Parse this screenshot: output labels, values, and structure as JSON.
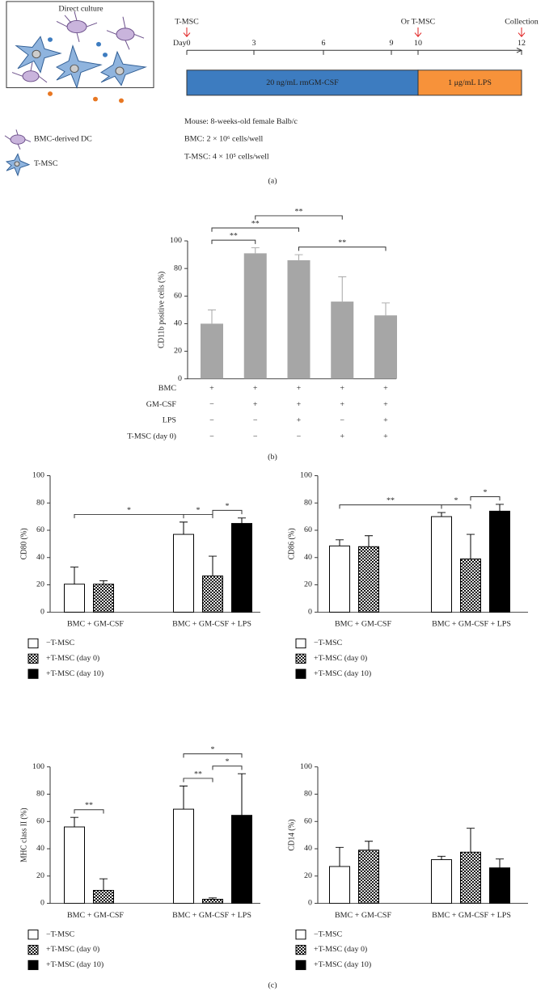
{
  "direct_culture": {
    "title": "Direct culture",
    "legend": [
      "BMC-derived DC",
      "T-MSC"
    ]
  },
  "timeline": {
    "day_label": "Day",
    "days": [
      0,
      3,
      6,
      9,
      10,
      12
    ],
    "markers": [
      {
        "label": "T-MSC",
        "day": 0
      },
      {
        "label": "Or T-MSC",
        "day": 10
      },
      {
        "label": "Collection",
        "day": 12
      }
    ],
    "phases": [
      {
        "label": "20 ng/mL rmGM-CSF",
        "from": 0,
        "to": 10,
        "color": "#3d7cc0"
      },
      {
        "label": "1 μg/mL LPS",
        "from": 10,
        "to": 12,
        "color": "#f7923a"
      }
    ],
    "notes": [
      "Mouse: 8-weeks-old female Balb/c",
      "BMC: 2 × 10⁶ cells/well",
      "T-MSC: 4 × 10⁵ cells/well"
    ]
  },
  "panels": {
    "a": "(a)",
    "b": "(b)",
    "c": "(c)"
  },
  "chart_data": [
    {
      "type": "bar",
      "y_label": "CD11b positive cells (%)",
      "values": [
        40,
        91,
        86,
        56,
        46
      ],
      "errors": [
        10,
        4,
        4,
        18,
        9
      ],
      "color": "#a6a6a6",
      "ylim": [
        0,
        100
      ],
      "yticks": [
        0,
        20,
        40,
        60,
        80,
        100
      ],
      "conditions": [
        {
          "label": "BMC",
          "marks": [
            "+",
            "+",
            "+",
            "+",
            "+"
          ]
        },
        {
          "label": "GM-CSF",
          "marks": [
            "−",
            "+",
            "+",
            "+",
            "+"
          ]
        },
        {
          "label": "LPS",
          "marks": [
            "−",
            "−",
            "+",
            "−",
            "+"
          ]
        },
        {
          "label": "T-MSC (day 0)",
          "marks": [
            "−",
            "−",
            "−",
            "+",
            "+"
          ]
        }
      ],
      "significance": [
        {
          "label": "**",
          "from": 0,
          "to": 1
        },
        {
          "label": "**",
          "from": 2,
          "to": 4
        },
        {
          "label": "**",
          "from": 0,
          "to": 2
        },
        {
          "label": "**",
          "from": 1,
          "to": 3
        }
      ]
    },
    {
      "type": "grouped_bar",
      "y_label": "CD80 (%)",
      "categories": [
        "BMC + GM-CSF",
        "BMC + GM-CSF + LPS"
      ],
      "ylim": [
        0,
        100
      ],
      "yticks": [
        0,
        20,
        40,
        60,
        80,
        100
      ],
      "series": [
        {
          "name": "−T-MSC",
          "color": "#ffffff",
          "values": [
            20.5,
            57
          ],
          "errors": [
            12.5,
            9
          ]
        },
        {
          "name": "+T-MSC (day 0)",
          "color": "checker",
          "values": [
            20.5,
            26.5
          ],
          "errors": [
            2.5,
            14.5
          ]
        },
        {
          "name": "+T-MSC (day 10)",
          "color": "#000000",
          "values": [
            null,
            65
          ],
          "errors": [
            null,
            4
          ]
        }
      ],
      "significance": [
        {
          "label": "*",
          "from": [
            0,
            1
          ],
          "to": [
            1,
            1
          ]
        },
        {
          "label": "*",
          "from": [
            1,
            1
          ],
          "to": [
            2,
            1
          ]
        },
        {
          "label": "*",
          "from": [
            0,
            0
          ],
          "to": [
            0,
            1
          ]
        }
      ]
    },
    {
      "type": "grouped_bar",
      "y_label": "CD86 (%)",
      "categories": [
        "BMC + GM-CSF",
        "BMC + GM-CSF + LPS"
      ],
      "ylim": [
        0,
        100
      ],
      "yticks": [
        0,
        20,
        40,
        60,
        80,
        100
      ],
      "series": [
        {
          "name": "−T-MSC",
          "color": "#ffffff",
          "values": [
            48.5,
            70
          ],
          "errors": [
            4.5,
            3
          ]
        },
        {
          "name": "+T-MSC (day 0)",
          "color": "checker",
          "values": [
            48,
            39
          ],
          "errors": [
            8,
            18
          ]
        },
        {
          "name": "+T-MSC (day 10)",
          "color": "#000000",
          "values": [
            null,
            74
          ],
          "errors": [
            null,
            5
          ]
        }
      ],
      "significance": [
        {
          "label": "*",
          "from": [
            0,
            1
          ],
          "to": [
            1,
            1
          ]
        },
        {
          "label": "*",
          "from": [
            1,
            1
          ],
          "to": [
            2,
            1
          ]
        },
        {
          "label": "**",
          "from": [
            0,
            0
          ],
          "to": [
            0,
            1
          ]
        }
      ]
    },
    {
      "type": "grouped_bar",
      "y_label": "MHC class II (%)",
      "categories": [
        "BMC + GM-CSF",
        "BMC + GM-CSF + LPS"
      ],
      "ylim": [
        0,
        100
      ],
      "yticks": [
        0,
        20,
        40,
        60,
        80,
        100
      ],
      "series": [
        {
          "name": "−T-MSC",
          "color": "#ffffff",
          "values": [
            56,
            69
          ],
          "errors": [
            7,
            17
          ]
        },
        {
          "name": "+T-MSC (day 0)",
          "color": "checker",
          "values": [
            9.5,
            3
          ],
          "errors": [
            8.5,
            1
          ]
        },
        {
          "name": "+T-MSC (day 10)",
          "color": "#000000",
          "values": [
            null,
            64.5
          ],
          "errors": [
            null,
            30.5
          ]
        }
      ],
      "significance": [
        {
          "label": "**",
          "from": [
            0,
            0
          ],
          "to": [
            1,
            0
          ]
        },
        {
          "label": "**",
          "from": [
            0,
            1
          ],
          "to": [
            1,
            1
          ]
        },
        {
          "label": "*",
          "from": [
            1,
            1
          ],
          "to": [
            2,
            1
          ]
        },
        {
          "label": "*",
          "from": [
            0,
            1
          ],
          "to": [
            2,
            1
          ]
        }
      ]
    },
    {
      "type": "grouped_bar",
      "y_label": "CD14 (%)",
      "categories": [
        "BMC + GM-CSF",
        "BMC + GM-CSF + LPS"
      ],
      "ylim": [
        0,
        100
      ],
      "yticks": [
        0,
        20,
        40,
        60,
        80,
        100
      ],
      "series": [
        {
          "name": "−T-MSC",
          "color": "#ffffff",
          "values": [
            27,
            32
          ],
          "errors": [
            14,
            2.5
          ]
        },
        {
          "name": "+T-MSC (day 0)",
          "color": "checker",
          "values": [
            39,
            37.5
          ],
          "errors": [
            6.5,
            17.5
          ]
        },
        {
          "name": "+T-MSC (day 10)",
          "color": "#000000",
          "values": [
            null,
            26
          ],
          "errors": [
            null,
            6.5
          ]
        }
      ],
      "significance": []
    }
  ]
}
